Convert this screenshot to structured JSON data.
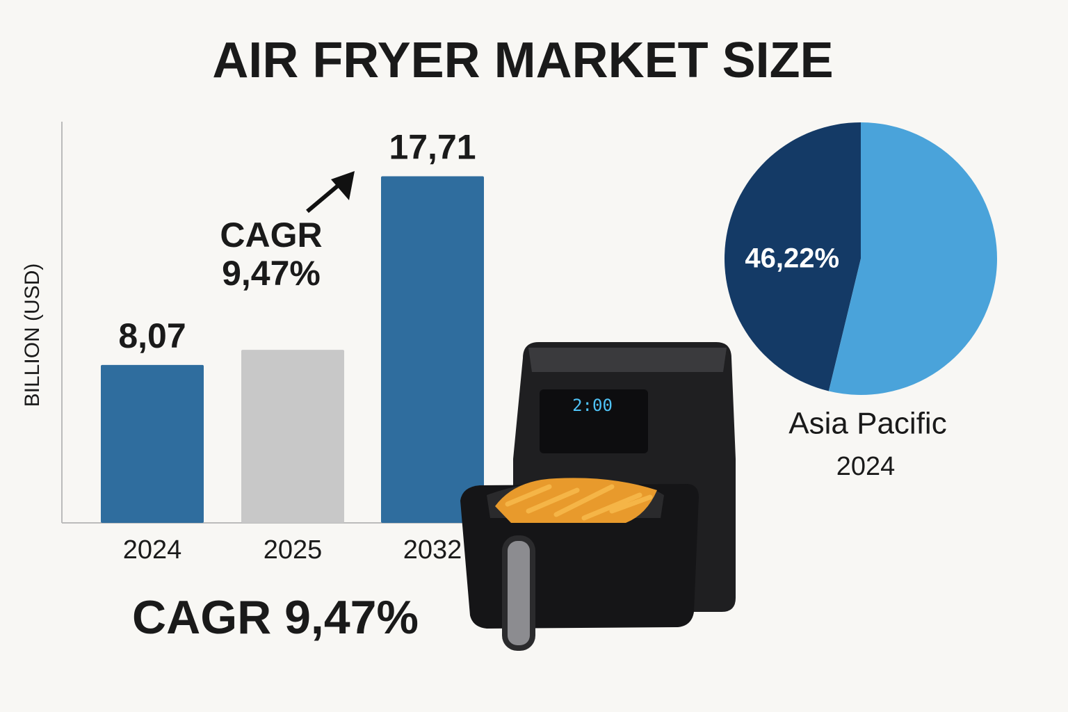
{
  "title": "AIR FRYER MARKET SIZE",
  "footer": "CAGR 9,47%",
  "illustration": {
    "display": "2:00"
  },
  "chart_data": [
    {
      "type": "bar",
      "y_label": "BILLION (USD)",
      "categories": [
        "2024",
        "2025",
        "2032"
      ],
      "values": [
        8.07,
        8.84,
        17.71
      ],
      "value_labels": [
        "8,07",
        null,
        "17,71"
      ],
      "colors": [
        "#2f6d9e",
        "#c8c8c8",
        "#2f6d9e"
      ],
      "ylim": [
        0,
        20.5
      ],
      "annotation": [
        "CAGR",
        "9,47%"
      ]
    },
    {
      "type": "pie",
      "labels": [
        "Asia Pacific",
        null
      ],
      "values": [
        46.22,
        53.78
      ],
      "value_labels": [
        "46,22%",
        null
      ],
      "colors": [
        "#143a66",
        "#4aa3da"
      ],
      "subtitle": "2024"
    }
  ]
}
